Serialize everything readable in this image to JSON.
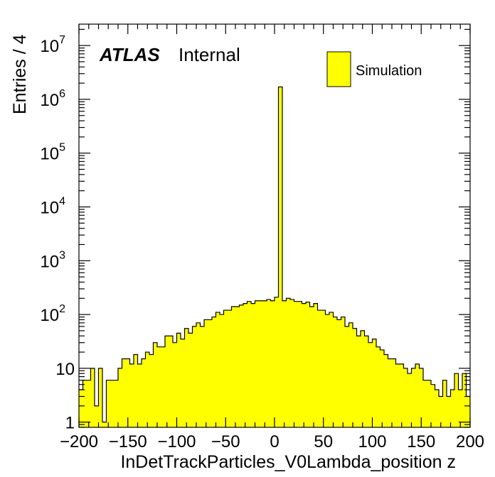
{
  "chart_data": {
    "type": "bar",
    "subtype": "histogram",
    "x_label": "InDetTrackParticles_V0Lambda_position z",
    "y_label": "Entries / 4",
    "x_range": [
      -200,
      200
    ],
    "y_range": [
      0.8,
      25000000
    ],
    "y_scale": "log",
    "bin_width": 4,
    "x_ticks": [
      "−200",
      "−150",
      "−100",
      "−50",
      "0",
      "50",
      "100",
      "150",
      "200"
    ],
    "y_ticks": [
      {
        "value": 1,
        "mantissa": "1",
        "exp": ""
      },
      {
        "value": 10,
        "mantissa": "10",
        "exp": ""
      },
      {
        "value": 100,
        "mantissa": "10",
        "exp": "2"
      },
      {
        "value": 1000,
        "mantissa": "10",
        "exp": "3"
      },
      {
        "value": 10000,
        "mantissa": "10",
        "exp": "4"
      },
      {
        "value": 100000,
        "mantissa": "10",
        "exp": "5"
      },
      {
        "value": 1000000,
        "mantissa": "10",
        "exp": "6"
      },
      {
        "value": 10000000,
        "mantissa": "10",
        "exp": "7"
      }
    ],
    "fill_color": "#ffff00",
    "line_color": "#000000",
    "series": [
      {
        "name": "Simulation",
        "bin_edges_start": -200,
        "values": [
          4,
          6,
          6,
          10,
          2,
          10,
          1,
          6,
          6,
          6,
          10,
          15,
          15,
          12,
          18,
          12,
          15,
          20,
          18,
          30,
          25,
          25,
          40,
          40,
          30,
          45,
          35,
          55,
          45,
          60,
          70,
          60,
          80,
          80,
          90,
          110,
          100,
          120,
          120,
          140,
          140,
          150,
          160,
          175,
          160,
          180,
          180,
          180,
          190,
          180,
          210,
          1700000,
          180,
          200,
          190,
          175,
          175,
          160,
          170,
          140,
          160,
          120,
          120,
          100,
          110,
          90,
          80,
          90,
          60,
          70,
          55,
          40,
          50,
          40,
          30,
          35,
          25,
          22,
          18,
          15,
          15,
          12,
          12,
          10,
          8,
          10,
          12,
          10,
          6,
          6,
          5,
          4,
          3,
          6,
          3,
          4,
          8,
          4,
          8,
          3
        ]
      }
    ]
  },
  "labels": {
    "atlas": "ATLAS",
    "internal": "Internal",
    "legend_entry": "Simulation"
  }
}
